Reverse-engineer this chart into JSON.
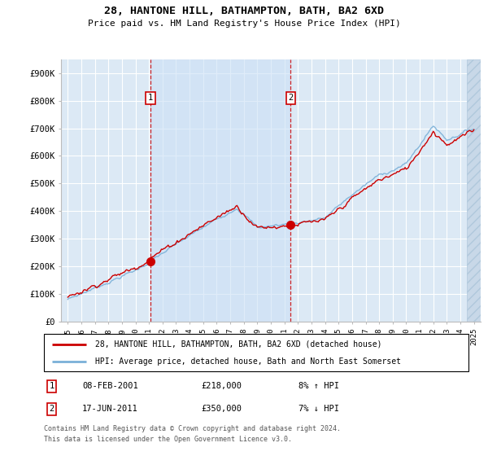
{
  "title": "28, HANTONE HILL, BATHAMPTON, BATH, BA2 6XD",
  "subtitle": "Price paid vs. HM Land Registry's House Price Index (HPI)",
  "ylabel_ticks": [
    "£0",
    "£100K",
    "£200K",
    "£300K",
    "£400K",
    "£500K",
    "£600K",
    "£700K",
    "£800K",
    "£900K"
  ],
  "ytick_values": [
    0,
    100000,
    200000,
    300000,
    400000,
    500000,
    600000,
    700000,
    800000,
    900000
  ],
  "ylim": [
    0,
    950000
  ],
  "xlim_start": 1994.5,
  "xlim_end": 2025.5,
  "plot_bg": "#dce9f5",
  "grid_color": "#ffffff",
  "hpi_color": "#7ab0d8",
  "price_color": "#cc0000",
  "shade_between_sales": "#cce0f5",
  "sale1_x": 2001.1,
  "sale1_y": 218000,
  "sale2_x": 2011.46,
  "sale2_y": 350000,
  "legend1": "28, HANTONE HILL, BATHAMPTON, BATH, BA2 6XD (detached house)",
  "legend2": "HPI: Average price, detached house, Bath and North East Somerset",
  "table_rows": [
    {
      "num": "1",
      "date": "08-FEB-2001",
      "price": "£218,000",
      "hpi": "8% ↑ HPI"
    },
    {
      "num": "2",
      "date": "17-JUN-2011",
      "price": "£350,000",
      "hpi": "7% ↓ HPI"
    }
  ],
  "footnote1": "Contains HM Land Registry data © Crown copyright and database right 2024.",
  "footnote2": "This data is licensed under the Open Government Licence v3.0.",
  "hatch_x_start": 2024.5
}
